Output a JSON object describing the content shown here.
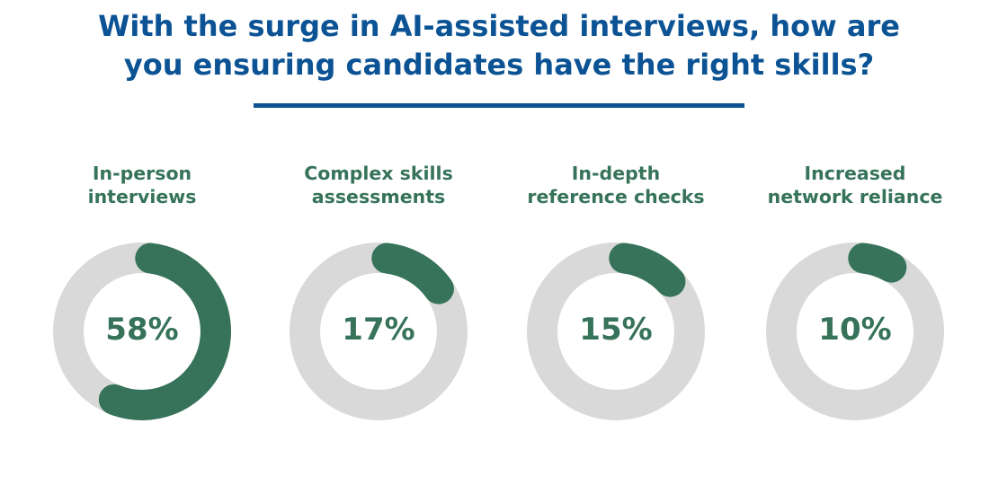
{
  "title": {
    "line1": "With the surge in AI-assisted interviews, how are",
    "line2": "you ensuring candidates have the right skills?"
  },
  "colors": {
    "title": "#0b5394",
    "accent": "#36735a",
    "track": "#d9d9d9"
  },
  "chart_data": {
    "type": "pie",
    "title": "With the surge in AI-assisted interviews, how are you ensuring candidates have the right skills?",
    "categories": [
      "In-person interviews",
      "Complex skills assessments",
      "In-depth reference checks",
      "Increased network reliance"
    ],
    "values": [
      58,
      17,
      15,
      10
    ],
    "unit": "%",
    "items": [
      {
        "label_lines": [
          "In-person",
          "interviews"
        ],
        "value": 58,
        "value_label": "58%"
      },
      {
        "label_lines": [
          "Complex skills",
          "assessments"
        ],
        "value": 17,
        "value_label": "17%"
      },
      {
        "label_lines": [
          "In-depth",
          "reference checks"
        ],
        "value": 15,
        "value_label": "15%"
      },
      {
        "label_lines": [
          "Increased",
          "network reliance"
        ],
        "value": 10,
        "value_label": "10%"
      }
    ]
  }
}
